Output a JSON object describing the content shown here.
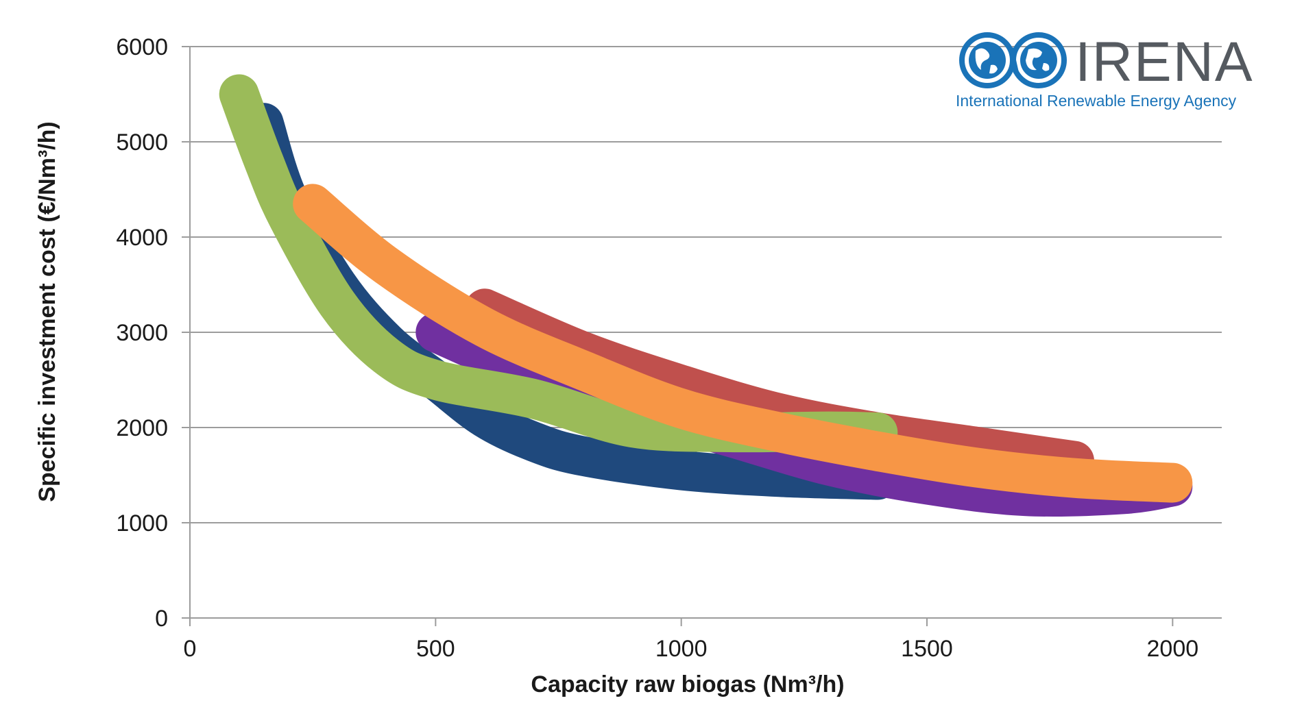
{
  "chart_data": {
    "type": "line",
    "title": "",
    "xlabel": "Capacity raw biogas (Nm³/h)",
    "ylabel": "Specific investment cost (€/Nm³/h)",
    "xlim": [
      0,
      2100
    ],
    "ylim": [
      0,
      6000
    ],
    "x_ticks": [
      0,
      500,
      1000,
      1500,
      2000
    ],
    "y_ticks": [
      0,
      1000,
      2000,
      3000,
      4000,
      5000,
      6000
    ],
    "grid": true,
    "legend": "none",
    "series": [
      {
        "color": "#1f497d",
        "points": [
          [
            150,
            5200
          ],
          [
            200,
            4400
          ],
          [
            300,
            3500
          ],
          [
            400,
            2900
          ],
          [
            500,
            2500
          ],
          [
            600,
            2100
          ],
          [
            700,
            1850
          ],
          [
            800,
            1700
          ],
          [
            1000,
            1550
          ],
          [
            1200,
            1480
          ],
          [
            1400,
            1450
          ]
        ]
      },
      {
        "color": "#c0504d",
        "points": [
          [
            600,
            3250
          ],
          [
            800,
            2800
          ],
          [
            1000,
            2450
          ],
          [
            1200,
            2150
          ],
          [
            1400,
            1950
          ],
          [
            1600,
            1800
          ],
          [
            1800,
            1650
          ]
        ]
      },
      {
        "color": "#7030a0",
        "points": [
          [
            500,
            3000
          ],
          [
            700,
            2550
          ],
          [
            900,
            2200
          ],
          [
            1100,
            1900
          ],
          [
            1300,
            1600
          ],
          [
            1500,
            1400
          ],
          [
            1700,
            1280
          ],
          [
            1900,
            1300
          ],
          [
            2000,
            1380
          ]
        ]
      },
      {
        "color": "#9bbb59",
        "points": [
          [
            100,
            5500
          ],
          [
            150,
            4800
          ],
          [
            200,
            4200
          ],
          [
            300,
            3300
          ],
          [
            400,
            2750
          ],
          [
            500,
            2500
          ],
          [
            700,
            2300
          ],
          [
            900,
            2000
          ],
          [
            1100,
            1950
          ],
          [
            1300,
            1960
          ],
          [
            1400,
            1950
          ]
        ]
      },
      {
        "color": "#f79646",
        "points": [
          [
            250,
            4350
          ],
          [
            400,
            3700
          ],
          [
            600,
            3050
          ],
          [
            800,
            2600
          ],
          [
            1000,
            2200
          ],
          [
            1200,
            1950
          ],
          [
            1400,
            1750
          ],
          [
            1600,
            1580
          ],
          [
            1800,
            1470
          ],
          [
            2000,
            1420
          ]
        ]
      }
    ]
  },
  "logo": {
    "wordmark": "IRENA",
    "tagline": "International Renewable Energy Agency",
    "color_blue": "#1a73b8",
    "color_grey": "#555a60"
  }
}
